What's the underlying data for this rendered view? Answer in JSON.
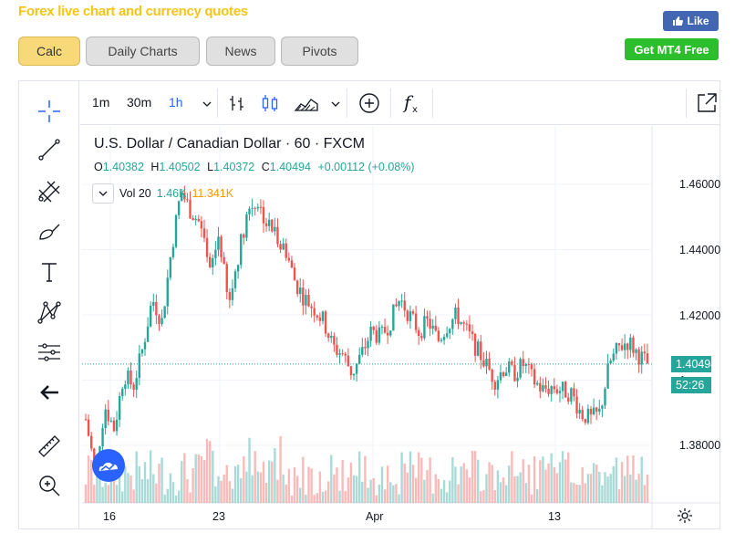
{
  "page": {
    "title": "Forex live chart and currency quotes"
  },
  "social": {
    "like_label": "Like",
    "mt4_label": "Get MT4 Free"
  },
  "tabs": [
    {
      "label": "Calc",
      "active": true
    },
    {
      "label": "Daily Charts",
      "active": false
    },
    {
      "label": "News",
      "active": false
    },
    {
      "label": "Pivots",
      "active": false
    }
  ],
  "toolbar": {
    "timeframes": [
      {
        "label": "1m",
        "active": false
      },
      {
        "label": "30m",
        "active": false
      },
      {
        "label": "1h",
        "active": true
      }
    ],
    "icons": [
      "dropdown-chevron-icon",
      "bar-chart-icon",
      "candlestick-icon",
      "area-chart-icon",
      "add-indicator-icon",
      "function-icon",
      "fullscreen-icon"
    ]
  },
  "left_tools": [
    "crosshair-icon",
    "trend-line-icon",
    "fib-tool-icon",
    "brush-icon",
    "text-icon",
    "pattern-icon",
    "measure-icon",
    "back-arrow-icon",
    "ruler-icon",
    "zoom-icon"
  ],
  "legend": {
    "title": "U.S. Dollar / Canadian Dollar · 60 · FXCM",
    "o_label": "O",
    "o": "1.40382",
    "h_label": "H",
    "h": "1.40502",
    "l_label": "L",
    "l": "1.40372",
    "c_label": "C",
    "c": "1.40494",
    "change": "+0.00112 (+0.08%)",
    "vol_label": "Vol 20",
    "vol_value": "1.46K",
    "vol_ma": "11.341K"
  },
  "price_axis": {
    "ticks": [
      "1.46000",
      "1.44000",
      "1.42000",
      "1.38000"
    ],
    "last_price": "1.40494",
    "countdown": "52:26",
    "partial_tick": "1"
  },
  "time_axis": {
    "ticks": [
      "16",
      "23",
      "Apr",
      "13"
    ]
  },
  "colors": {
    "up": "#26a69a",
    "down": "#ef5350",
    "accent": "#2962ff",
    "title": "#f5c518"
  },
  "chart_data": {
    "type": "candlestick",
    "symbol": "USD/CAD",
    "interval": "60",
    "ylim": [
      1.365,
      1.47
    ],
    "x_ticks": [
      "16",
      "23",
      "Apr",
      "13"
    ],
    "y_ticks": [
      1.38,
      1.42,
      1.44,
      1.46
    ],
    "close_series": [
      1.388,
      1.372,
      1.392,
      1.385,
      1.402,
      1.398,
      1.41,
      1.425,
      1.418,
      1.44,
      1.458,
      1.452,
      1.448,
      1.432,
      1.445,
      1.422,
      1.438,
      1.452,
      1.455,
      1.448,
      1.445,
      1.44,
      1.43,
      1.425,
      1.422,
      1.418,
      1.41,
      1.408,
      1.402,
      1.408,
      1.415,
      1.413,
      1.418,
      1.425,
      1.42,
      1.415,
      1.418,
      1.412,
      1.417,
      1.42,
      1.415,
      1.41,
      1.405,
      1.4,
      1.404,
      1.402,
      1.405,
      1.4,
      1.397,
      1.398,
      1.397,
      1.396,
      1.39,
      1.388,
      1.39,
      1.405,
      1.41,
      1.412,
      1.408,
      1.405
    ],
    "grid": true,
    "legend_position": "top-left"
  }
}
